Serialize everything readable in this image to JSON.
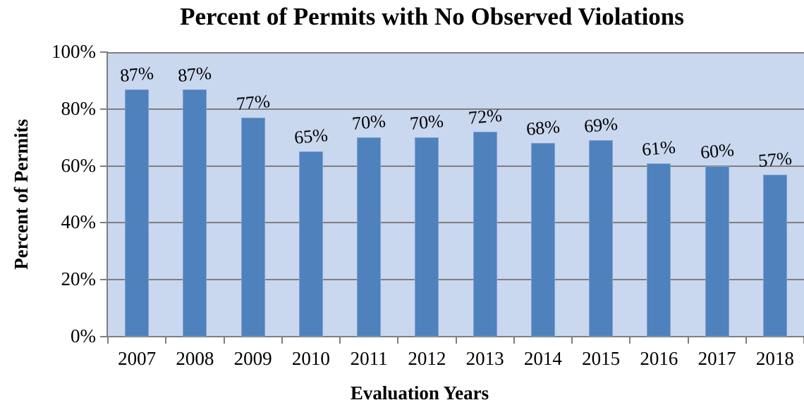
{
  "chart_data": {
    "type": "bar",
    "title": "Percent of Permits with No Observed Violations",
    "xlabel": "Evaluation Years",
    "ylabel": "Percent of Permits",
    "categories": [
      "2007",
      "2008",
      "2009",
      "2010",
      "2011",
      "2012",
      "2013",
      "2014",
      "2015",
      "2016",
      "2017",
      "2018"
    ],
    "values": [
      87,
      87,
      77,
      65,
      70,
      70,
      72,
      68,
      69,
      61,
      60,
      57
    ],
    "data_labels": [
      "87%",
      "87%",
      "77%",
      "65%",
      "70%",
      "70%",
      "72%",
      "68%",
      "69%",
      "61%",
      "60%",
      "57%"
    ],
    "ylim": [
      0,
      100
    ],
    "y_ticks": [
      {
        "label": "0%",
        "value": 0
      },
      {
        "label": "20%",
        "value": 20
      },
      {
        "label": "40%",
        "value": 40
      },
      {
        "label": "60%",
        "value": 60
      },
      {
        "label": "80%",
        "value": 80
      },
      {
        "label": "100%",
        "value": 100
      }
    ],
    "grid": true,
    "legend": false,
    "colors": {
      "bar": "#4f81bd",
      "bar_border": "#7ea2d1",
      "plot_bg": "#c9d7ef",
      "gridline": "#7f7f7f",
      "axis": "#7f7f7f",
      "text": "#000000",
      "background": "#ffffff"
    }
  }
}
